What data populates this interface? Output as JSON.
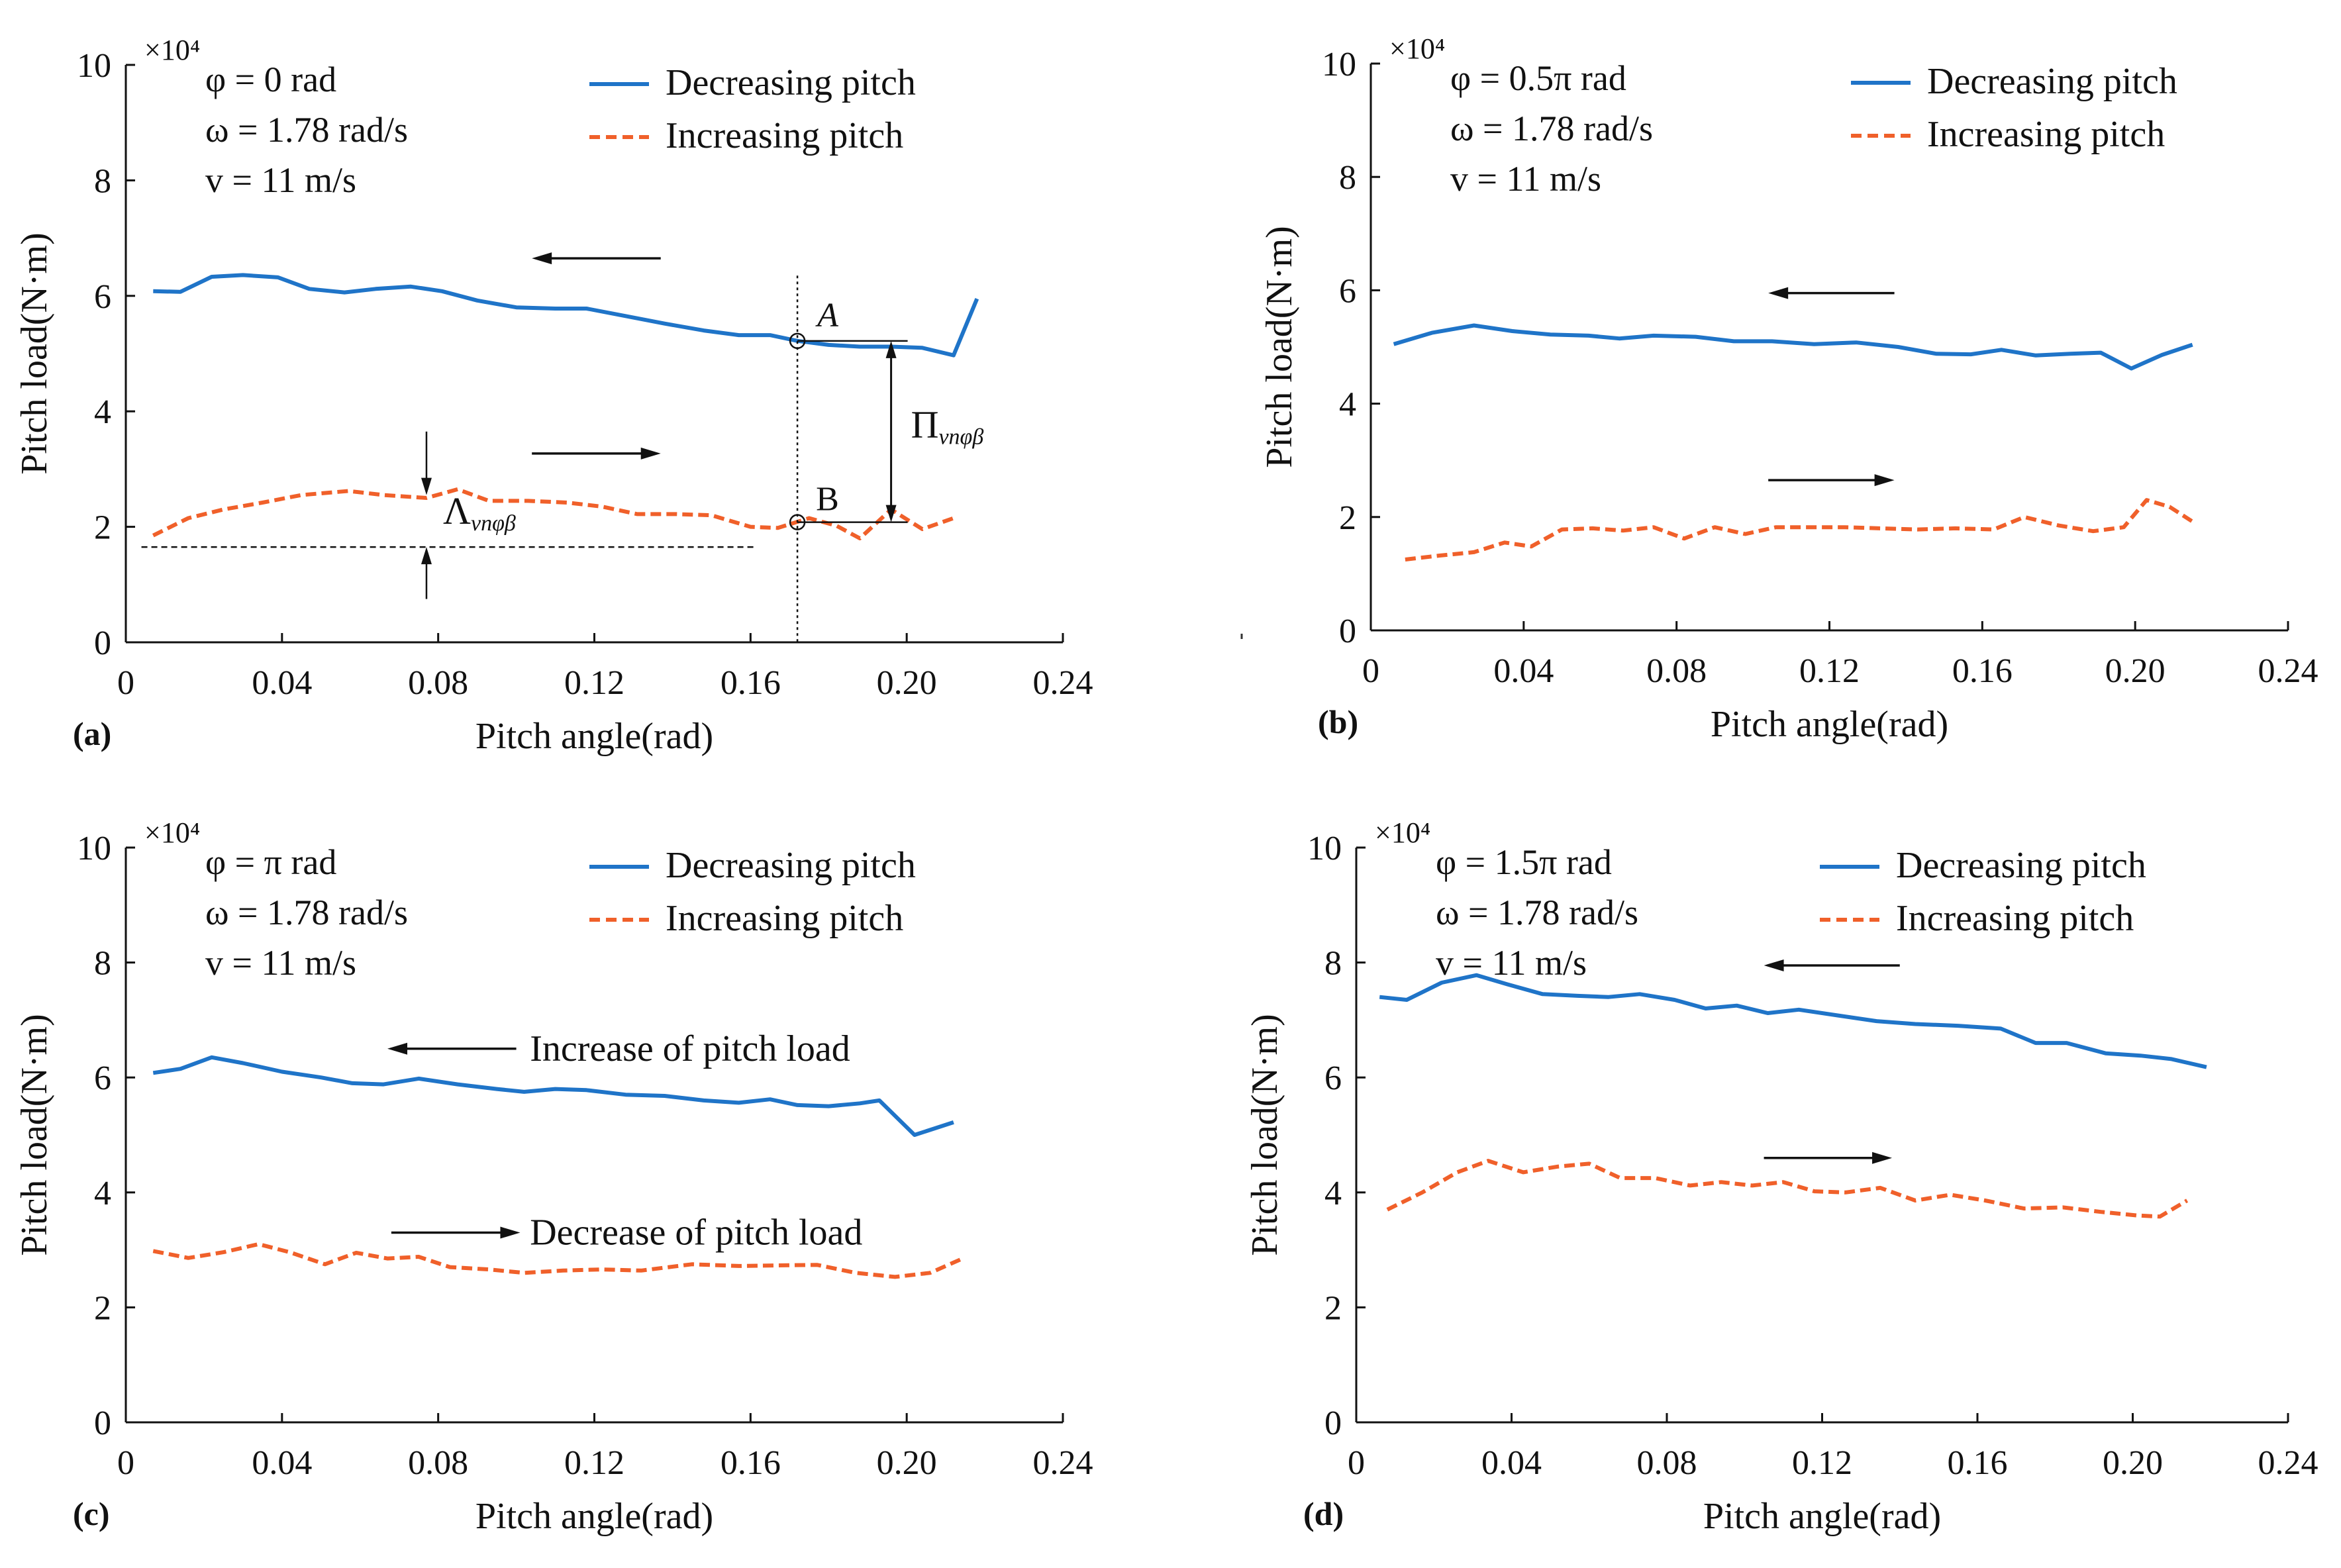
{
  "figure": {
    "panels_order": [
      "a",
      "b",
      "c",
      "d"
    ]
  },
  "chart_data": [
    {
      "panel": "a",
      "type": "line",
      "panel_label": "(a)",
      "xlabel": "Pitch angle(rad)",
      "ylabel": "Pitch load(N·m)",
      "multiplier": "×10⁴",
      "xlim": [
        0,
        0.24
      ],
      "ylim": [
        0,
        10
      ],
      "xticks": [
        0,
        0.04,
        0.08,
        0.12,
        0.16,
        0.2,
        0.24
      ],
      "xtick_labels": [
        "0",
        "0.04",
        "0.08",
        "0.12",
        "0.16",
        "0.20",
        "0.24"
      ],
      "yticks": [
        0,
        2,
        4,
        6,
        8,
        10
      ],
      "ytick_labels": [
        "0",
        "2",
        "4",
        "6",
        "8",
        "10"
      ],
      "params": [
        "φ = 0 rad",
        "ω = 1.78 rad/s",
        "v = 11 m/s"
      ],
      "legend": [
        "Decreasing pitch",
        "Increasing pitch"
      ],
      "colors": {
        "decreasing": "#1f74c8",
        "increasing": "#f0602a"
      },
      "series": [
        {
          "name": "Decreasing pitch",
          "x": [
            0.007,
            0.014,
            0.022,
            0.03,
            0.039,
            0.047,
            0.056,
            0.064,
            0.073,
            0.081,
            0.09,
            0.1,
            0.11,
            0.118,
            0.128,
            0.138,
            0.148,
            0.157,
            0.165,
            0.172,
            0.18,
            0.188,
            0.196,
            0.204,
            0.212,
            0.218
          ],
          "values": [
            6.08,
            6.07,
            6.33,
            6.36,
            6.32,
            6.12,
            6.06,
            6.12,
            6.16,
            6.08,
            5.92,
            5.8,
            5.78,
            5.78,
            5.65,
            5.52,
            5.4,
            5.32,
            5.32,
            5.22,
            5.15,
            5.12,
            5.12,
            5.1,
            4.97,
            5.95
          ]
        },
        {
          "name": "Increasing pitch",
          "x": [
            0.007,
            0.016,
            0.025,
            0.035,
            0.045,
            0.057,
            0.066,
            0.077,
            0.085,
            0.093,
            0.103,
            0.113,
            0.122,
            0.131,
            0.141,
            0.15,
            0.16,
            0.167,
            0.175,
            0.182,
            0.188,
            0.196,
            0.204,
            0.212
          ],
          "values": [
            1.85,
            2.15,
            2.3,
            2.42,
            2.55,
            2.62,
            2.55,
            2.5,
            2.65,
            2.45,
            2.45,
            2.42,
            2.35,
            2.22,
            2.22,
            2.2,
            2.0,
            1.98,
            2.15,
            2.02,
            1.8,
            2.3,
            1.96,
            2.15
          ]
        }
      ],
      "annotations": {
        "point_a": {
          "label": "A",
          "x": 0.172,
          "y": 5.22
        },
        "point_b": {
          "label": "B",
          "x": 0.172,
          "y": 2.08
        },
        "pi_symbol": "Π",
        "pi_sub": "vnφβ",
        "lambda_symbol": "Λ",
        "lambda_sub": "vnφβ",
        "dashed_level": 1.65,
        "lambda_x": 0.077,
        "bracket_x": 0.196
      }
    },
    {
      "panel": "b",
      "type": "line",
      "panel_label": "(b)",
      "xlabel": "Pitch angle(rad)",
      "ylabel": "Pitch load(N·m)",
      "multiplier": "×10⁴",
      "xlim": [
        0,
        0.24
      ],
      "ylim": [
        0,
        10
      ],
      "xticks": [
        0,
        0.04,
        0.08,
        0.12,
        0.16,
        0.2,
        0.24
      ],
      "xtick_labels": [
        "0",
        "0.04",
        "0.08",
        "0.12",
        "0.16",
        "0.20",
        "0.24"
      ],
      "yticks": [
        0,
        2,
        4,
        6,
        8,
        10
      ],
      "ytick_labels": [
        "0",
        "2",
        "4",
        "6",
        "8",
        "10"
      ],
      "params": [
        "φ = 0.5π  rad",
        "ω = 1.78 rad/s",
        "v = 11 m/s"
      ],
      "legend": [
        "Decreasing pitch",
        "Increasing pitch"
      ],
      "colors": {
        "decreasing": "#1f74c8",
        "increasing": "#f0602a"
      },
      "series": [
        {
          "name": "Decreasing pitch",
          "x": [
            0.006,
            0.016,
            0.027,
            0.037,
            0.047,
            0.057,
            0.065,
            0.074,
            0.085,
            0.095,
            0.105,
            0.116,
            0.127,
            0.138,
            0.148,
            0.157,
            0.165,
            0.174,
            0.183,
            0.191,
            0.199,
            0.207,
            0.215
          ],
          "values": [
            5.05,
            5.25,
            5.38,
            5.28,
            5.22,
            5.2,
            5.15,
            5.2,
            5.18,
            5.1,
            5.1,
            5.05,
            5.08,
            5.0,
            4.88,
            4.87,
            4.95,
            4.85,
            4.88,
            4.9,
            4.62,
            4.86,
            5.04
          ]
        },
        {
          "name": "Increasing pitch",
          "x": [
            0.009,
            0.018,
            0.027,
            0.035,
            0.042,
            0.05,
            0.058,
            0.066,
            0.074,
            0.082,
            0.09,
            0.098,
            0.106,
            0.115,
            0.124,
            0.133,
            0.143,
            0.153,
            0.163,
            0.171,
            0.18,
            0.189,
            0.197,
            0.203,
            0.209,
            0.215
          ],
          "values": [
            1.25,
            1.32,
            1.38,
            1.55,
            1.48,
            1.78,
            1.8,
            1.76,
            1.82,
            1.62,
            1.82,
            1.7,
            1.82,
            1.82,
            1.82,
            1.8,
            1.78,
            1.8,
            1.78,
            2.0,
            1.85,
            1.75,
            1.82,
            2.3,
            2.18,
            1.92
          ]
        }
      ]
    },
    {
      "panel": "c",
      "type": "line",
      "panel_label": "(c)",
      "xlabel": "Pitch angle(rad)",
      "ylabel": "Pitch load(N·m)",
      "multiplier": "×10⁴",
      "xlim": [
        0,
        0.24
      ],
      "ylim": [
        0,
        10
      ],
      "xticks": [
        0,
        0.04,
        0.08,
        0.12,
        0.16,
        0.2,
        0.24
      ],
      "xtick_labels": [
        "0",
        "0.04",
        "0.08",
        "0.12",
        "0.16",
        "0.20",
        "0.24"
      ],
      "yticks": [
        0,
        2,
        4,
        6,
        8,
        10
      ],
      "ytick_labels": [
        "0",
        "2",
        "4",
        "6",
        "8",
        "10"
      ],
      "params": [
        "φ = π  rad",
        "ω = 1.78 rad/s",
        "v = 11 m/s"
      ],
      "legend": [
        "Decreasing pitch",
        "Increasing pitch"
      ],
      "colors": {
        "decreasing": "#1f74c8",
        "increasing": "#f0602a"
      },
      "annotation_increase": "Increase of pitch load",
      "annotation_decrease": "Decrease of pitch load",
      "series": [
        {
          "name": "Decreasing pitch",
          "x": [
            0.007,
            0.014,
            0.022,
            0.03,
            0.04,
            0.05,
            0.058,
            0.066,
            0.075,
            0.085,
            0.095,
            0.102,
            0.11,
            0.118,
            0.128,
            0.138,
            0.148,
            0.157,
            0.165,
            0.172,
            0.18,
            0.188,
            0.193,
            0.202,
            0.212
          ],
          "values": [
            6.08,
            6.15,
            6.35,
            6.25,
            6.1,
            6.0,
            5.9,
            5.88,
            5.98,
            5.88,
            5.8,
            5.75,
            5.8,
            5.78,
            5.7,
            5.68,
            5.6,
            5.56,
            5.62,
            5.52,
            5.5,
            5.55,
            5.6,
            5.0,
            5.22
          ]
        },
        {
          "name": "Increasing pitch",
          "x": [
            0.007,
            0.016,
            0.025,
            0.034,
            0.042,
            0.051,
            0.059,
            0.067,
            0.075,
            0.083,
            0.093,
            0.102,
            0.112,
            0.122,
            0.132,
            0.145,
            0.157,
            0.167,
            0.177,
            0.187,
            0.197,
            0.206,
            0.214
          ],
          "values": [
            2.98,
            2.86,
            2.96,
            3.1,
            2.96,
            2.75,
            2.95,
            2.85,
            2.88,
            2.7,
            2.66,
            2.6,
            2.64,
            2.66,
            2.64,
            2.75,
            2.72,
            2.73,
            2.74,
            2.6,
            2.53,
            2.6,
            2.84
          ]
        }
      ]
    },
    {
      "panel": "d",
      "type": "line",
      "panel_label": "(d)",
      "xlabel": "Pitch angle(rad)",
      "ylabel": "Pitch load(N·m)",
      "multiplier": "×10⁴",
      "xlim": [
        0,
        0.24
      ],
      "ylim": [
        0,
        10
      ],
      "xticks": [
        0,
        0.04,
        0.08,
        0.12,
        0.16,
        0.2,
        0.24
      ],
      "xtick_labels": [
        "0",
        "0.04",
        "0.08",
        "0.12",
        "0.16",
        "0.20",
        "0.24"
      ],
      "yticks": [
        0,
        2,
        4,
        6,
        8,
        10
      ],
      "ytick_labels": [
        "0",
        "2",
        "4",
        "6",
        "8",
        "10"
      ],
      "params": [
        "φ = 1.5π  rad",
        "ω = 1.78 rad/s",
        "v = 11 m/s"
      ],
      "legend": [
        "Decreasing pitch",
        "Increasing pitch"
      ],
      "colors": {
        "decreasing": "#1f74c8",
        "increasing": "#f0602a"
      },
      "series": [
        {
          "name": "Decreasing pitch",
          "x": [
            0.006,
            0.013,
            0.022,
            0.031,
            0.039,
            0.048,
            0.057,
            0.065,
            0.073,
            0.082,
            0.09,
            0.098,
            0.106,
            0.114,
            0.124,
            0.134,
            0.144,
            0.155,
            0.166,
            0.175,
            0.183,
            0.193,
            0.202,
            0.21,
            0.219
          ],
          "values": [
            7.4,
            7.35,
            7.65,
            7.78,
            7.62,
            7.45,
            7.42,
            7.4,
            7.45,
            7.35,
            7.2,
            7.25,
            7.12,
            7.18,
            7.08,
            6.98,
            6.93,
            6.9,
            6.85,
            6.6,
            6.6,
            6.42,
            6.38,
            6.32,
            6.18
          ]
        },
        {
          "name": "Increasing pitch",
          "x": [
            0.008,
            0.017,
            0.026,
            0.034,
            0.043,
            0.052,
            0.06,
            0.068,
            0.077,
            0.086,
            0.094,
            0.102,
            0.11,
            0.118,
            0.126,
            0.135,
            0.144,
            0.153,
            0.162,
            0.172,
            0.182,
            0.192,
            0.201,
            0.207,
            0.214
          ],
          "values": [
            3.7,
            4.0,
            4.35,
            4.55,
            4.35,
            4.45,
            4.5,
            4.25,
            4.25,
            4.12,
            4.18,
            4.12,
            4.18,
            4.02,
            4.0,
            4.08,
            3.86,
            3.96,
            3.86,
            3.72,
            3.74,
            3.66,
            3.6,
            3.58,
            3.86
          ]
        }
      ]
    }
  ]
}
